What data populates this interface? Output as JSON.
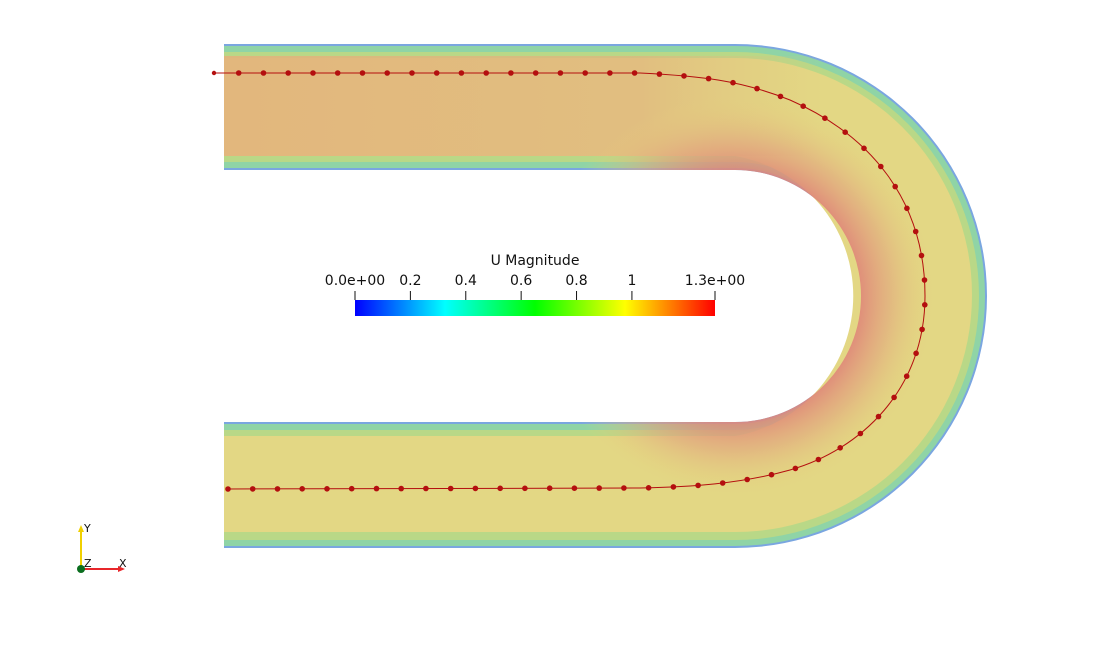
{
  "colorbar": {
    "title": "U Magnitude",
    "ticks": [
      {
        "label": "0.0e+00",
        "value": 0.0
      },
      {
        "label": "0.2",
        "value": 0.2
      },
      {
        "label": "0.4",
        "value": 0.4
      },
      {
        "label": "0.6",
        "value": 0.6
      },
      {
        "label": "0.8",
        "value": 0.8
      },
      {
        "label": "1",
        "value": 1.0
      },
      {
        "label": "1.3e+00",
        "value": 1.3
      }
    ],
    "range": [
      0.0,
      1.3
    ],
    "colormap": [
      "#0000ff",
      "#00ffff",
      "#00ff00",
      "#ffff00",
      "#ff0000"
    ]
  },
  "orientation_axes": {
    "y_label": "Y",
    "z_label": "Z",
    "x_label": "X",
    "colors": {
      "x": "#e8262a",
      "y": "#f0d000",
      "z": "#0b6e1f"
    }
  },
  "colors": {
    "pipe_core": "#e3d784",
    "pipe_hot": "#df8a7e",
    "pipe_wall": "#7aa6e0",
    "streamline": "#b40f0f"
  }
}
